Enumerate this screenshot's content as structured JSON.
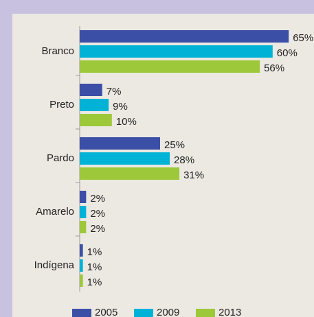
{
  "chart_data": {
    "type": "hbar",
    "categories": [
      "Branco",
      "Preto",
      "Pardo",
      "Amarelo",
      "Indígena"
    ],
    "series": [
      {
        "name": "2005",
        "color": "#3c4fa6",
        "values": [
          65,
          7,
          25,
          2,
          1
        ],
        "value_labels": [
          "65%",
          "7%",
          "25%",
          "2%",
          "1%"
        ]
      },
      {
        "name": "2009",
        "color": "#00b2d6",
        "values": [
          60,
          9,
          28,
          2,
          1
        ],
        "value_labels": [
          "60%",
          "9%",
          "28%",
          "2%",
          "1%"
        ]
      },
      {
        "name": "2013",
        "color": "#9dc83a",
        "values": [
          56,
          10,
          31,
          2,
          1
        ],
        "value_labels": [
          "56%",
          "10%",
          "31%",
          "2%",
          "1%"
        ]
      }
    ],
    "legend": "bottom"
  }
}
